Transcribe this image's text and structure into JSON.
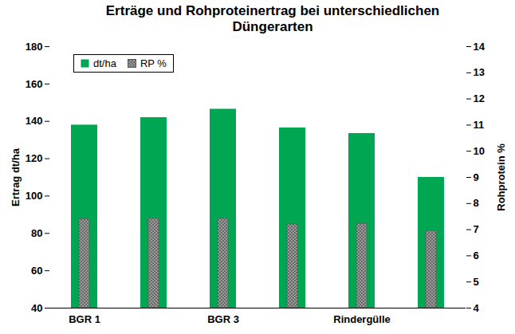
{
  "chart_data": {
    "type": "bar",
    "title": "Erträge und Rohproteinertrag bei unterschiedlichen Düngerarten",
    "categories": [
      "BGR 1",
      null,
      "BGR 3",
      null,
      "Rindergülle",
      null
    ],
    "series": [
      {
        "name": "dt/ha",
        "color": "#00a651",
        "values": [
          138,
          142,
          146.5,
          136.5,
          133.5,
          110
        ]
      },
      {
        "name": "RP %",
        "color": "#9a9a9a",
        "axis": "y2",
        "values": [
          7.4,
          7.42,
          7.42,
          7.2,
          7.22,
          6.95
        ]
      }
    ],
    "y_label": "Ertrag dt/ha",
    "y2_label": "Rohprotein %",
    "ylim": [
      40,
      180
    ],
    "yticks": [
      40,
      60,
      80,
      100,
      120,
      140,
      160,
      180
    ],
    "y2lim": [
      4,
      14
    ],
    "y2ticks": [
      4,
      5,
      6,
      7,
      8,
      9,
      10,
      11,
      12,
      13,
      14
    ],
    "grid": false,
    "legend": "top-left"
  }
}
